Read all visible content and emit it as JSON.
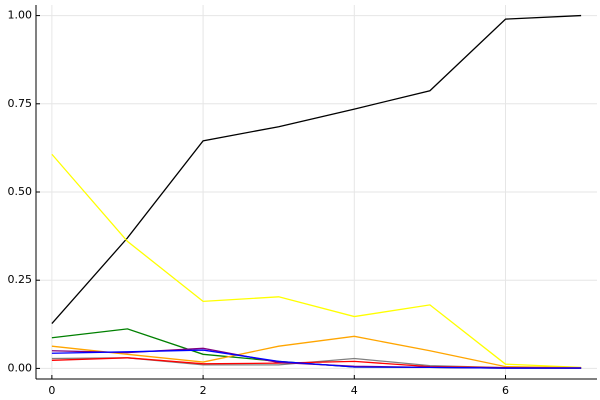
{
  "chart_data": {
    "type": "line",
    "x": [
      0,
      1,
      2,
      3,
      4,
      5,
      6,
      7
    ],
    "series": [
      {
        "color": "#000000",
        "values": [
          0.127,
          0.37,
          0.645,
          0.685,
          0.735,
          0.787,
          0.99,
          1.0
        ]
      },
      {
        "color": "#ffff00",
        "values": [
          0.607,
          0.36,
          0.19,
          0.203,
          0.147,
          0.18,
          0.012,
          0.003
        ]
      },
      {
        "color": "#008000",
        "values": [
          0.087,
          0.112,
          0.04,
          0.02,
          0.004,
          0.003,
          0.001,
          0.001
        ]
      },
      {
        "color": "#ffa500",
        "values": [
          0.063,
          0.04,
          0.018,
          0.063,
          0.091,
          0.05,
          0.005,
          0.002
        ]
      },
      {
        "color": "#808080",
        "values": [
          0.028,
          0.03,
          0.01,
          0.01,
          0.028,
          0.008,
          0.002,
          0.001
        ]
      },
      {
        "color": "#ff0000",
        "values": [
          0.023,
          0.03,
          0.013,
          0.015,
          0.02,
          0.005,
          0.002,
          0.001
        ]
      },
      {
        "color": "#800080",
        "values": [
          0.05,
          0.045,
          0.057,
          0.017,
          0.006,
          0.003,
          0.001,
          0.001
        ]
      },
      {
        "color": "#0000ff",
        "values": [
          0.043,
          0.047,
          0.052,
          0.02,
          0.004,
          0.003,
          0.001,
          0.001
        ]
      }
    ],
    "xlim": [
      -0.21,
      7.21
    ],
    "xticks": [
      0,
      2,
      4,
      6
    ],
    "ylim": [
      -0.03,
      1.03
    ],
    "yticks": [
      {
        "value": 0,
        "label": "0.00"
      },
      {
        "value": 0.25,
        "label": "0.25"
      },
      {
        "value": 0.5,
        "label": "0.50"
      },
      {
        "value": 0.75,
        "label": "0.75"
      },
      {
        "value": 1,
        "label": "1.00"
      }
    ],
    "grid": true
  }
}
